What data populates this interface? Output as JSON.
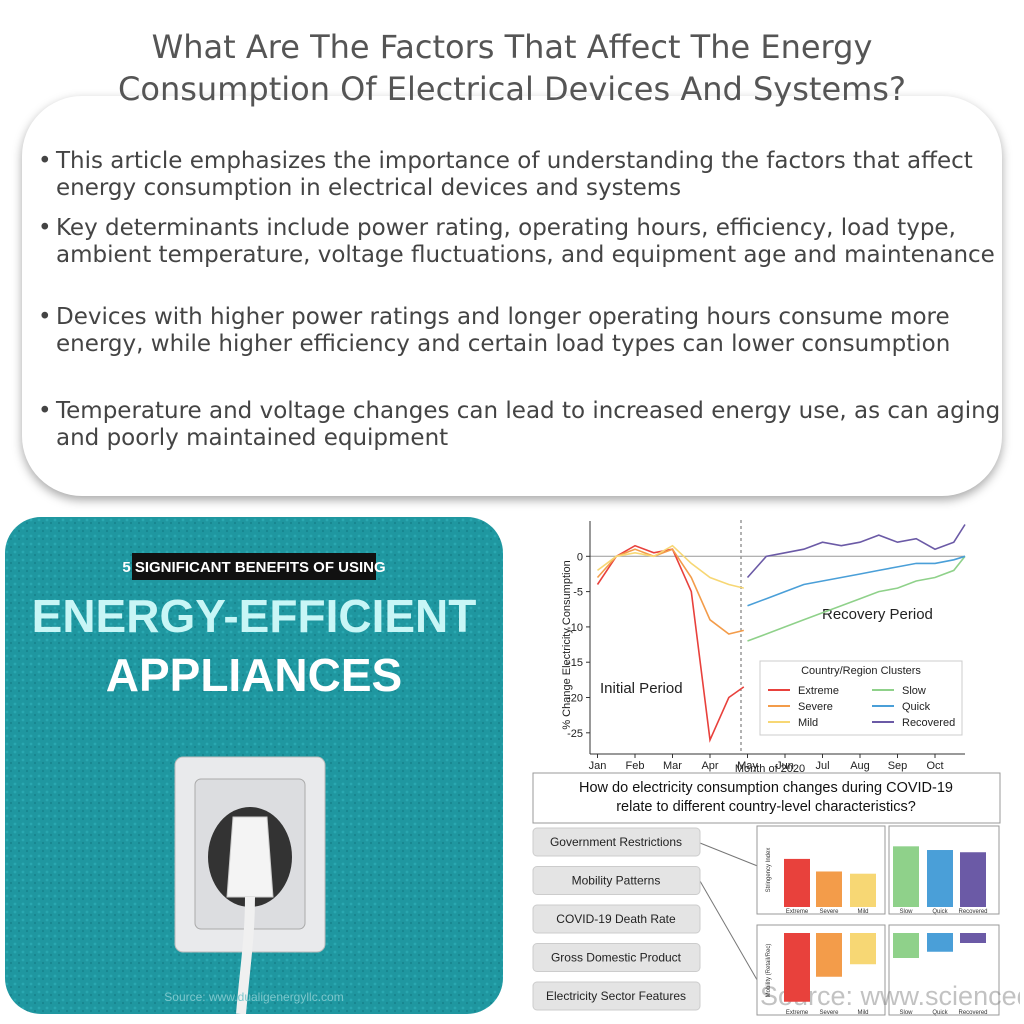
{
  "header": {
    "title": "What Are The Factors That Affect The Energy Consumption Of Electrical Devices And Systems?"
  },
  "bullets": [
    "This article emphasizes the importance of understanding the factors that affect energy consumption in electrical devices and systems",
    "Key determinants include power rating, operating hours, efficiency, load type, ambient temperature, voltage fluctuations, and equipment age and maintenance",
    "Devices with higher power ratings and longer operating hours consume more energy, while higher efficiency and certain load types can lower consumption",
    "Temperature and voltage changes can lead to increased energy use, as can aging and poorly maintained equipment"
  ],
  "left_image": {
    "kicker": "5 SIGNIFICANT BENEFITS OF USING",
    "headline_1": "ENERGY-EFFICIENT",
    "headline_2": "APPLIANCES",
    "source": "Source: www.dualigenergyllc.com"
  },
  "chart_data": {
    "type": "line",
    "x_label": "Month of 2020",
    "y_label": "% Change Electricity Consumption",
    "annotations": [
      "Initial Period",
      "Recovery Period"
    ],
    "legend_title": "Country/Region Clusters",
    "xlim": [
      0.8,
      10.8
    ],
    "ylim": [
      -28,
      5
    ],
    "xticks": [
      {
        "value": 1,
        "label": "Jan"
      },
      {
        "value": 2,
        "label": "Feb"
      },
      {
        "value": 3,
        "label": "Mar"
      },
      {
        "value": 4,
        "label": "Apr"
      },
      {
        "value": 5,
        "label": "May"
      },
      {
        "value": 6,
        "label": "Jun"
      },
      {
        "value": 7,
        "label": "Jul"
      },
      {
        "value": 8,
        "label": "Aug"
      },
      {
        "value": 9,
        "label": "Sep"
      },
      {
        "value": 10,
        "label": "Oct"
      }
    ],
    "yticks": [
      0,
      -5,
      -10,
      -15,
      -20,
      -25
    ],
    "x": [
      1,
      1.5,
      2,
      2.5,
      3,
      3.5,
      4,
      4.5,
      4.9,
      5,
      5.5,
      6,
      6.5,
      7,
      7.5,
      8,
      8.5,
      9,
      9.5,
      10,
      10.5,
      10.8
    ],
    "series": [
      {
        "name": "Extreme",
        "color": "#e8413c",
        "values": [
          -4,
          0,
          1.5,
          0.5,
          1,
          -5,
          -26,
          -20,
          -18.5,
          null,
          null,
          null,
          null,
          null,
          null,
          null,
          null,
          null,
          null,
          null,
          null,
          null
        ]
      },
      {
        "name": "Severe",
        "color": "#f39c4a",
        "values": [
          -3,
          0,
          1,
          0,
          1,
          -3,
          -9,
          -11,
          -10.5,
          null,
          null,
          null,
          null,
          null,
          null,
          null,
          null,
          null,
          null,
          null,
          null,
          null
        ]
      },
      {
        "name": "Mild",
        "color": "#f7d774",
        "values": [
          -2,
          0,
          0.5,
          0,
          1.5,
          -1,
          -3,
          -4,
          -4.5,
          null,
          null,
          null,
          null,
          null,
          null,
          null,
          null,
          null,
          null,
          null,
          null,
          null
        ]
      },
      {
        "name": "Slow",
        "color": "#8fd18a",
        "values": [
          null,
          null,
          null,
          null,
          null,
          null,
          null,
          null,
          null,
          -12,
          -11,
          -10,
          -9,
          -8,
          -7,
          -6,
          -5,
          -4.5,
          -3.5,
          -3,
          -2,
          0
        ]
      },
      {
        "name": "Quick",
        "color": "#4a9fd8",
        "values": [
          null,
          null,
          null,
          null,
          null,
          null,
          null,
          null,
          null,
          -7,
          -6,
          -5,
          -4,
          -3.5,
          -3,
          -2.5,
          -2,
          -1.5,
          -1,
          -1,
          -0.5,
          0
        ]
      },
      {
        "name": "Recovered",
        "color": "#6b5aa6",
        "values": [
          null,
          null,
          null,
          null,
          null,
          null,
          null,
          null,
          null,
          -3,
          0,
          0.5,
          1,
          2,
          1.5,
          2,
          3,
          2,
          2.5,
          1,
          2,
          4.5
        ]
      }
    ]
  },
  "figure": {
    "question": "How do electricity consumption changes during COVID-19 relate to different country-level characteristics?",
    "characteristics": [
      "Government Restrictions",
      "Mobility Patterns",
      "COVID-19 Death Rate",
      "Gross Domestic Product",
      "Electricity Sector Features"
    ],
    "panels": [
      {
        "type": "bar",
        "y_label": "Stringency Index",
        "ylim": [
          0,
          100
        ],
        "categories": [
          "Extreme",
          "Severe",
          "Mild",
          "Slow",
          "Quick",
          "Recovered"
        ],
        "values": [
          65,
          48,
          45,
          82,
          77,
          74
        ]
      },
      {
        "type": "bar",
        "y_label": "Mobility (Retail/Rec)",
        "ylim": [
          -60,
          0
        ],
        "categories": [
          "Extreme",
          "Severe",
          "Mild",
          "Slow",
          "Quick",
          "Recovered"
        ],
        "values": [
          -55,
          -35,
          -25,
          -20,
          -15,
          -8
        ]
      }
    ],
    "source": "Source: www.sciencedirect.com"
  }
}
